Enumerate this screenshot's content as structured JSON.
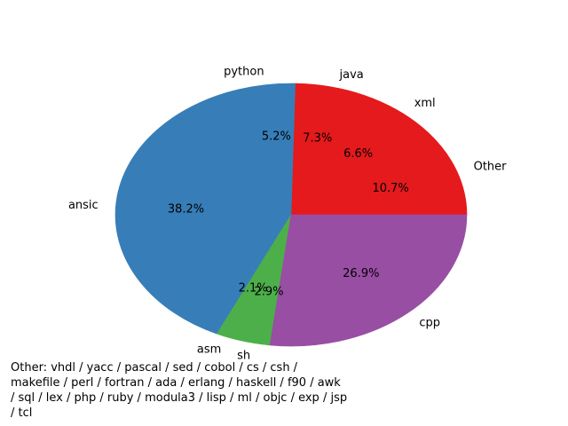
{
  "chart_data": {
    "type": "pie",
    "title": "",
    "slices": [
      {
        "label": "Other",
        "value": 10.7,
        "pct_label": "10.7%",
        "color": "#e41a1c"
      },
      {
        "label": "xml",
        "value": 6.6,
        "pct_label": "6.6%",
        "color": "#e41a1c"
      },
      {
        "label": "java",
        "value": 7.3,
        "pct_label": "7.3%",
        "color": "#e41a1c"
      },
      {
        "label": "python",
        "value": 5.2,
        "pct_label": "5.2%",
        "color": "#377eb8"
      },
      {
        "label": "ansic",
        "value": 38.2,
        "pct_label": "38.2%",
        "color": "#377eb8"
      },
      {
        "label": "asm",
        "value": 2.1,
        "pct_label": "2.1%",
        "color": "#4daf4a"
      },
      {
        "label": "sh",
        "value": 2.9,
        "pct_label": "2.9%",
        "color": "#4daf4a"
      },
      {
        "label": "cpp",
        "value": 26.9,
        "pct_label": "26.9%",
        "color": "#984ea3"
      }
    ],
    "start_angle_deg": 0,
    "direction": "counterclockwise",
    "footnote": "Other: vhdl / yacc / pascal / sed / cobol / cs / csh / makefile / perl / fortran / ada / erlang / haskell / f90 / awk / sql / lex / php / ruby / modula3 / lisp / ml / objc / exp / jsp / tcl"
  }
}
